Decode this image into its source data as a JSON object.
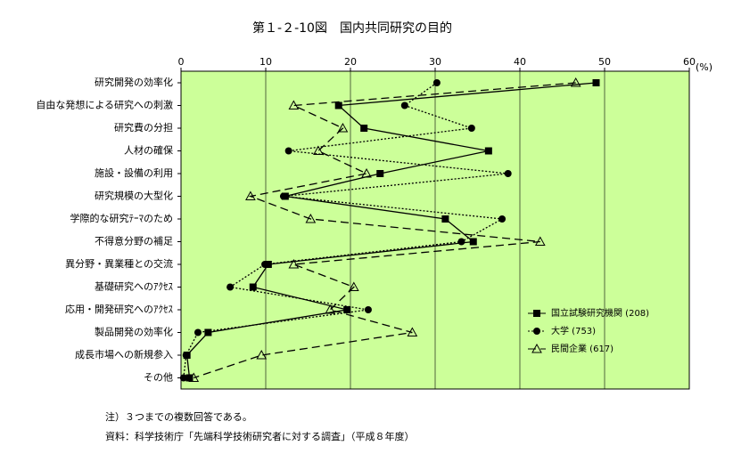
{
  "chart_data": {
    "type": "line",
    "orientation": "horizontal",
    "title": "第１-２-10図　国内共同研究の目的",
    "xlabel": "(%)",
    "categories": [
      "研究開発の効率化",
      "自由な発想による研究への刺激",
      "研究費の分担",
      "人材の確保",
      "施設・設備の利用",
      "研究規模の大型化",
      "学際的な研究ﾃｰﾏのため",
      "不得意分野の補足",
      "異分野・異業種との交流",
      "基礎研究へのｱｸｾｽ",
      "応用・開発研究へのｱｸｾｽ",
      "製品開発の効率化",
      "成長市場への新規参入",
      "その他"
    ],
    "series": [
      {
        "name": "国立試験研究機関 (208)",
        "color": "#000000",
        "dash": "solid",
        "marker": "square",
        "values": [
          49.0,
          18.6,
          21.6,
          36.3,
          23.5,
          12.3,
          31.2,
          34.5,
          10.3,
          8.5,
          19.6,
          3.2,
          0.7,
          1.0
        ]
      },
      {
        "name": "大学 (753)",
        "color": "#000000",
        "dash": "dotted",
        "marker": "circle",
        "values": [
          30.2,
          26.4,
          34.3,
          12.7,
          38.6,
          12.1,
          37.9,
          33.1,
          9.9,
          5.8,
          22.1,
          2.0,
          0.6,
          0.3
        ]
      },
      {
        "name": "民間企業 (617)",
        "color": "#000000",
        "dash": "dashed",
        "marker": "triangle",
        "values": [
          46.6,
          13.3,
          19.1,
          16.2,
          21.9,
          8.2,
          15.3,
          42.4,
          13.3,
          20.4,
          17.6,
          27.3,
          9.5,
          1.5
        ]
      }
    ],
    "xlim": [
      0,
      60
    ],
    "xticks": [
      0,
      10,
      20,
      30,
      40,
      50,
      60
    ],
    "grid": true,
    "background": "#ccff99",
    "notes": [
      "注）３つまでの複数回答である。",
      "資料：科学技術庁「先端科学技術研究者に対する調査」（平成８年度）"
    ]
  }
}
